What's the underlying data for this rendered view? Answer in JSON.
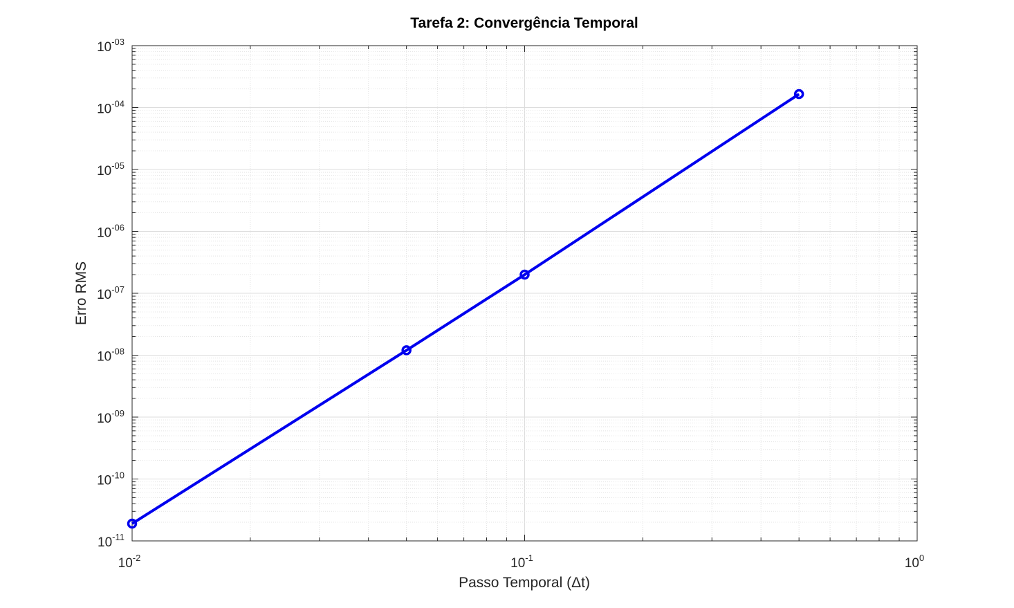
{
  "chart_data": {
    "type": "line",
    "title": "Tarefa 2: Convergência Temporal",
    "xlabel": "Passo Temporal (Δt)",
    "ylabel": "Erro RMS",
    "xscale": "log",
    "yscale": "log",
    "xlim": [
      0.01,
      1
    ],
    "ylim": [
      1e-11,
      0.001
    ],
    "x_ticks": [
      {
        "base": "10",
        "exp": "-2",
        "value": 0.01
      },
      {
        "base": "10",
        "exp": "-1",
        "value": 0.1
      },
      {
        "base": "10",
        "exp": "0",
        "value": 1
      }
    ],
    "y_ticks": [
      {
        "base": "10",
        "exp": "-11",
        "value": 1e-11
      },
      {
        "base": "10",
        "exp": "-10",
        "value": 1e-10
      },
      {
        "base": "10",
        "exp": "-09",
        "value": 1e-09
      },
      {
        "base": "10",
        "exp": "-08",
        "value": 1e-08
      },
      {
        "base": "10",
        "exp": "-07",
        "value": 1e-07
      },
      {
        "base": "10",
        "exp": "-06",
        "value": 1e-06
      },
      {
        "base": "10",
        "exp": "-05",
        "value": 1e-05
      },
      {
        "base": "10",
        "exp": "-04",
        "value": 0.0001
      },
      {
        "base": "10",
        "exp": "-03",
        "value": 0.001
      }
    ],
    "grid": true,
    "minor_grid": true,
    "series": [
      {
        "color": "#0000ee",
        "marker": "circle",
        "x": [
          0.01,
          0.05,
          0.1,
          0.5
        ],
        "y": [
          1.9e-11,
          1.2e-08,
          2e-07,
          0.000165
        ]
      }
    ]
  }
}
